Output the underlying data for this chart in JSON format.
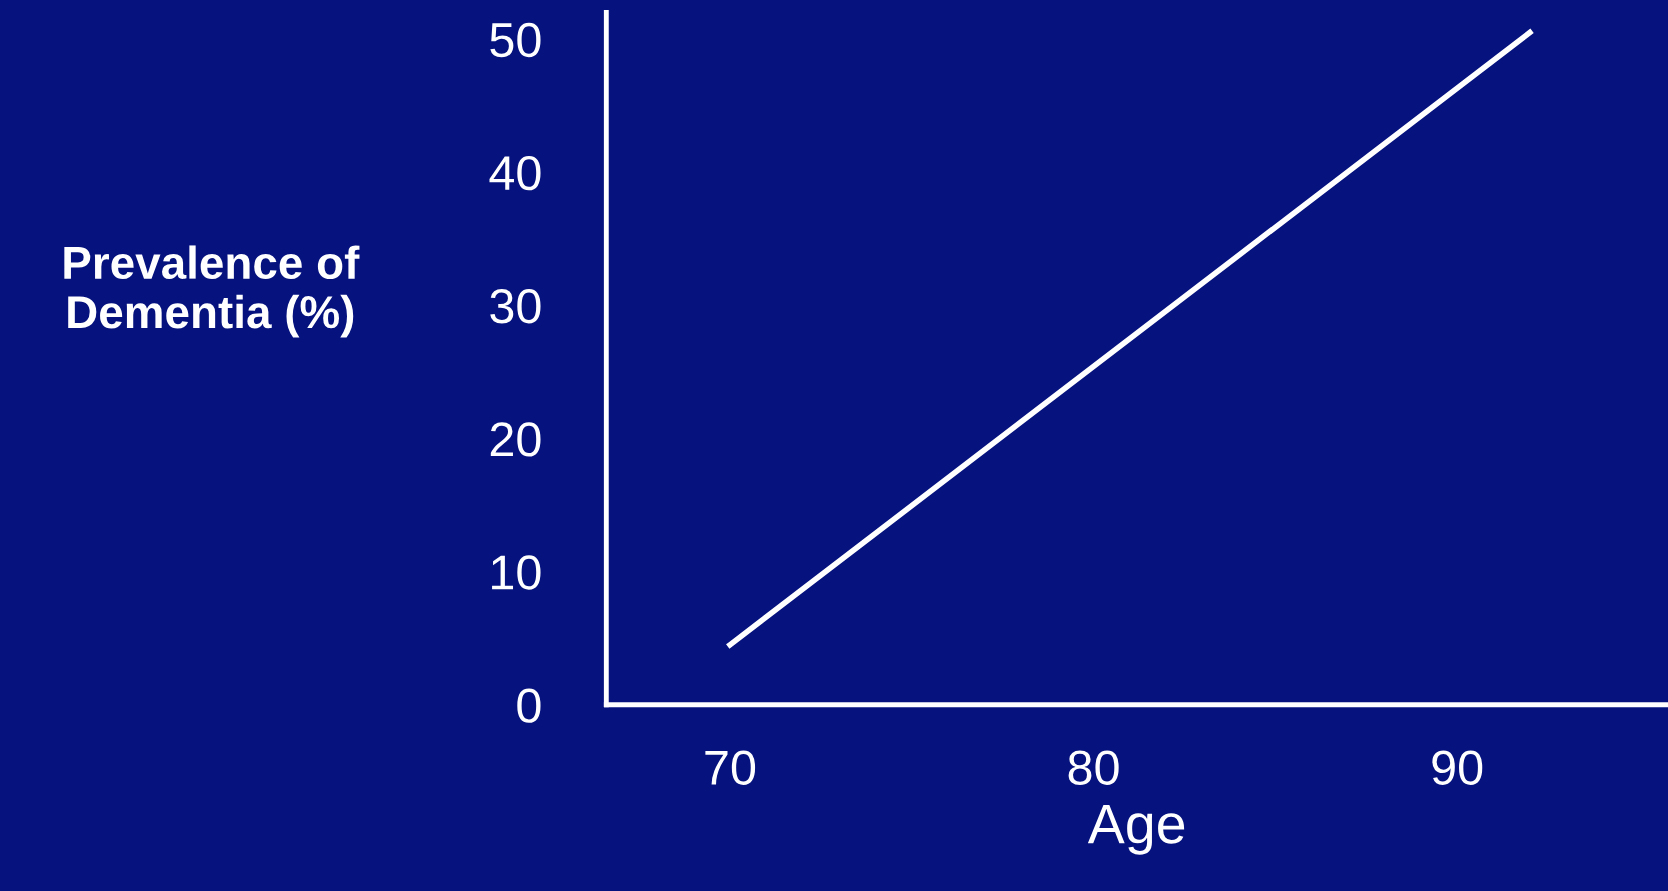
{
  "chart_data": {
    "type": "line",
    "xlabel": "Age",
    "ylabel": "Prevalence of\nDementia (%)",
    "x": [
      70,
      92
    ],
    "series": [
      {
        "color": "#ffffff",
        "values": [
          4.5,
          50.5
        ]
      }
    ],
    "xlim": [
      66.6,
      95.8
    ],
    "xticks": [
      70,
      80,
      90
    ],
    "ylim": [
      0,
      52
    ],
    "yticks": [
      0,
      10,
      20,
      30,
      40,
      50
    ],
    "grid": false,
    "legend": false,
    "marker": "none",
    "line_style": "solid"
  }
}
